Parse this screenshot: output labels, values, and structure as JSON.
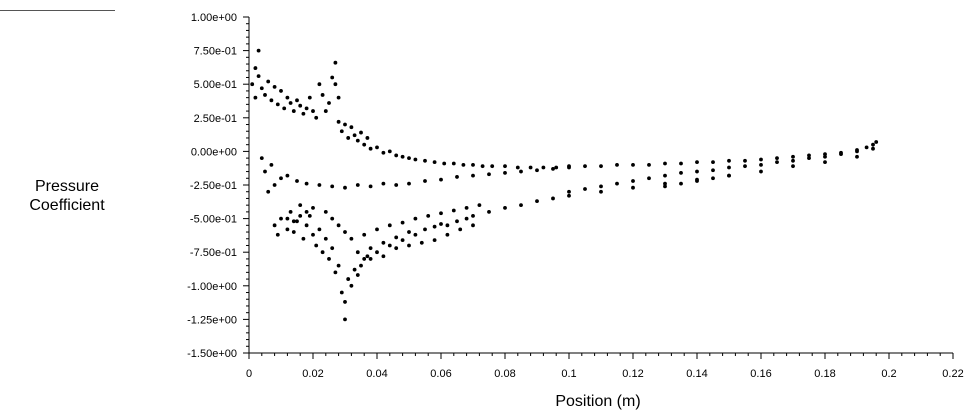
{
  "chart_data": {
    "type": "scatter",
    "title": "",
    "xlabel": "Position (m)",
    "ylabel_lines": [
      "Pressure",
      "Coefficient"
    ],
    "xlim": [
      0,
      0.22
    ],
    "ylim": [
      -1.5,
      1.0
    ],
    "x_tick_labels": [
      "0",
      "0.02",
      "0.04",
      "0.06",
      "0.08",
      "0.1",
      "0.12",
      "0.14",
      "0.16",
      "0.18",
      "0.2",
      "0.22"
    ],
    "y_tick_labels": [
      "1.00e+00",
      "7.50e-01",
      "5.00e-01",
      "2.50e-01",
      "0.00e+00",
      "-2.50e-01",
      "-5.00e-01",
      "-7.50e-01",
      "-1.00e+00",
      "-1.25e+00",
      "-1.50e+00"
    ],
    "series": [
      {
        "marker_color": "#000000",
        "points": [
          [
            0.001,
            0.5
          ],
          [
            0.002,
            0.62
          ],
          [
            0.002,
            0.4
          ],
          [
            0.003,
            0.75
          ],
          [
            0.003,
            0.56
          ],
          [
            0.004,
            0.47
          ],
          [
            0.005,
            0.42
          ],
          [
            0.006,
            0.52
          ],
          [
            0.007,
            0.38
          ],
          [
            0.008,
            0.48
          ],
          [
            0.009,
            0.35
          ],
          [
            0.01,
            0.45
          ],
          [
            0.011,
            0.32
          ],
          [
            0.012,
            0.4
          ],
          [
            0.013,
            0.36
          ],
          [
            0.014,
            0.3
          ],
          [
            0.015,
            0.38
          ],
          [
            0.016,
            0.34
          ],
          [
            0.017,
            0.28
          ],
          [
            0.018,
            0.32
          ],
          [
            0.019,
            0.4
          ],
          [
            0.02,
            0.3
          ],
          [
            0.021,
            0.25
          ],
          [
            0.022,
            0.5
          ],
          [
            0.023,
            0.42
          ],
          [
            0.024,
            0.3
          ],
          [
            0.025,
            0.36
          ],
          [
            0.026,
            0.55
          ],
          [
            0.027,
            0.66
          ],
          [
            0.027,
            0.5
          ],
          [
            0.028,
            0.4
          ],
          [
            0.028,
            0.22
          ],
          [
            0.029,
            0.15
          ],
          [
            0.03,
            0.2
          ],
          [
            0.031,
            0.1
          ],
          [
            0.032,
            0.18
          ],
          [
            0.033,
            0.12
          ],
          [
            0.034,
            0.08
          ],
          [
            0.035,
            0.14
          ],
          [
            0.036,
            0.05
          ],
          [
            0.037,
            0.1
          ],
          [
            0.038,
            0.02
          ],
          [
            0.04,
            0.03
          ],
          [
            0.042,
            -0.01
          ],
          [
            0.044,
            0.0
          ],
          [
            0.046,
            -0.03
          ],
          [
            0.048,
            -0.04
          ],
          [
            0.05,
            -0.05
          ],
          [
            0.052,
            -0.06
          ],
          [
            0.055,
            -0.07
          ],
          [
            0.058,
            -0.08
          ],
          [
            0.061,
            -0.09
          ],
          [
            0.064,
            -0.09
          ],
          [
            0.067,
            -0.1
          ],
          [
            0.07,
            -0.1
          ],
          [
            0.073,
            -0.11
          ],
          [
            0.076,
            -0.11
          ],
          [
            0.08,
            -0.11
          ],
          [
            0.084,
            -0.12
          ],
          [
            0.088,
            -0.12
          ],
          [
            0.092,
            -0.12
          ],
          [
            0.096,
            -0.12
          ],
          [
            0.1,
            -0.11
          ],
          [
            0.105,
            -0.11
          ],
          [
            0.11,
            -0.11
          ],
          [
            0.115,
            -0.1
          ],
          [
            0.12,
            -0.1
          ],
          [
            0.125,
            -0.1
          ],
          [
            0.13,
            -0.09
          ],
          [
            0.135,
            -0.09
          ],
          [
            0.14,
            -0.08
          ],
          [
            0.145,
            -0.08
          ],
          [
            0.15,
            -0.07
          ],
          [
            0.155,
            -0.07
          ],
          [
            0.16,
            -0.06
          ],
          [
            0.165,
            -0.05
          ],
          [
            0.17,
            -0.04
          ],
          [
            0.175,
            -0.03
          ],
          [
            0.18,
            -0.02
          ],
          [
            0.185,
            -0.01
          ],
          [
            0.19,
            0.01
          ],
          [
            0.193,
            0.03
          ],
          [
            0.195,
            0.05
          ],
          [
            0.196,
            0.07
          ],
          [
            0.004,
            -0.05
          ],
          [
            0.005,
            -0.15
          ],
          [
            0.006,
            -0.3
          ],
          [
            0.007,
            -0.1
          ],
          [
            0.008,
            -0.25
          ],
          [
            0.01,
            -0.2
          ],
          [
            0.012,
            -0.18
          ],
          [
            0.015,
            -0.22
          ],
          [
            0.018,
            -0.24
          ],
          [
            0.022,
            -0.25
          ],
          [
            0.026,
            -0.26
          ],
          [
            0.03,
            -0.27
          ],
          [
            0.034,
            -0.25
          ],
          [
            0.038,
            -0.26
          ],
          [
            0.042,
            -0.24
          ],
          [
            0.046,
            -0.25
          ],
          [
            0.05,
            -0.24
          ],
          [
            0.055,
            -0.22
          ],
          [
            0.06,
            -0.21
          ],
          [
            0.065,
            -0.19
          ],
          [
            0.07,
            -0.18
          ],
          [
            0.075,
            -0.17
          ],
          [
            0.08,
            -0.16
          ],
          [
            0.085,
            -0.15
          ],
          [
            0.09,
            -0.14
          ],
          [
            0.095,
            -0.13
          ],
          [
            0.1,
            -0.12
          ],
          [
            0.1,
            -0.3
          ],
          [
            0.105,
            -0.28
          ],
          [
            0.11,
            -0.26
          ],
          [
            0.115,
            -0.24
          ],
          [
            0.12,
            -0.22
          ],
          [
            0.125,
            -0.2
          ],
          [
            0.13,
            -0.18
          ],
          [
            0.135,
            -0.16
          ],
          [
            0.14,
            -0.15
          ],
          [
            0.145,
            -0.14
          ],
          [
            0.15,
            -0.12
          ],
          [
            0.155,
            -0.11
          ],
          [
            0.16,
            -0.1
          ],
          [
            0.165,
            -0.08
          ],
          [
            0.17,
            -0.07
          ],
          [
            0.175,
            -0.05
          ],
          [
            0.18,
            -0.04
          ],
          [
            0.185,
            -0.02
          ],
          [
            0.19,
            0.0
          ],
          [
            0.195,
            0.02
          ],
          [
            0.14,
            -0.22
          ],
          [
            0.145,
            -0.2
          ],
          [
            0.135,
            -0.24
          ],
          [
            0.15,
            -0.18
          ],
          [
            0.13,
            -0.26
          ],
          [
            0.008,
            -0.55
          ],
          [
            0.009,
            -0.62
          ],
          [
            0.01,
            -0.5
          ],
          [
            0.012,
            -0.58
          ],
          [
            0.013,
            -0.45
          ],
          [
            0.014,
            -0.6
          ],
          [
            0.015,
            -0.52
          ],
          [
            0.016,
            -0.4
          ],
          [
            0.017,
            -0.65
          ],
          [
            0.018,
            -0.55
          ],
          [
            0.019,
            -0.48
          ],
          [
            0.02,
            -0.62
          ],
          [
            0.021,
            -0.7
          ],
          [
            0.022,
            -0.58
          ],
          [
            0.023,
            -0.75
          ],
          [
            0.024,
            -0.65
          ],
          [
            0.025,
            -0.8
          ],
          [
            0.026,
            -0.72
          ],
          [
            0.027,
            -0.9
          ],
          [
            0.028,
            -0.85
          ],
          [
            0.029,
            -1.05
          ],
          [
            0.03,
            -1.12
          ],
          [
            0.03,
            -1.25
          ],
          [
            0.031,
            -0.95
          ],
          [
            0.032,
            -1.0
          ],
          [
            0.033,
            -0.88
          ],
          [
            0.034,
            -0.92
          ],
          [
            0.035,
            -0.85
          ],
          [
            0.036,
            -0.8
          ],
          [
            0.037,
            -0.78
          ],
          [
            0.038,
            -0.72
          ],
          [
            0.04,
            -0.75
          ],
          [
            0.042,
            -0.68
          ],
          [
            0.044,
            -0.7
          ],
          [
            0.046,
            -0.64
          ],
          [
            0.048,
            -0.66
          ],
          [
            0.05,
            -0.6
          ],
          [
            0.052,
            -0.62
          ],
          [
            0.055,
            -0.58
          ],
          [
            0.058,
            -0.56
          ],
          [
            0.06,
            -0.54
          ],
          [
            0.062,
            -0.55
          ],
          [
            0.065,
            -0.52
          ],
          [
            0.068,
            -0.5
          ],
          [
            0.07,
            -0.48
          ],
          [
            0.075,
            -0.45
          ],
          [
            0.08,
            -0.42
          ],
          [
            0.085,
            -0.4
          ],
          [
            0.09,
            -0.37
          ],
          [
            0.095,
            -0.35
          ],
          [
            0.1,
            -0.33
          ],
          [
            0.11,
            -0.3
          ],
          [
            0.12,
            -0.27
          ],
          [
            0.13,
            -0.24
          ],
          [
            0.14,
            -0.21
          ],
          [
            0.15,
            -0.18
          ],
          [
            0.16,
            -0.15
          ],
          [
            0.17,
            -0.11
          ],
          [
            0.18,
            -0.08
          ],
          [
            0.19,
            -0.04
          ],
          [
            0.036,
            -0.62
          ],
          [
            0.04,
            -0.58
          ],
          [
            0.044,
            -0.55
          ],
          [
            0.048,
            -0.53
          ],
          [
            0.052,
            -0.5
          ],
          [
            0.056,
            -0.48
          ],
          [
            0.06,
            -0.46
          ],
          [
            0.064,
            -0.44
          ],
          [
            0.068,
            -0.42
          ],
          [
            0.072,
            -0.4
          ],
          [
            0.034,
            -0.75
          ],
          [
            0.038,
            -0.8
          ],
          [
            0.042,
            -0.78
          ],
          [
            0.046,
            -0.72
          ],
          [
            0.05,
            -0.7
          ],
          [
            0.054,
            -0.68
          ],
          [
            0.058,
            -0.66
          ],
          [
            0.062,
            -0.62
          ],
          [
            0.066,
            -0.58
          ],
          [
            0.07,
            -0.55
          ],
          [
            0.024,
            -0.45
          ],
          [
            0.026,
            -0.5
          ],
          [
            0.028,
            -0.55
          ],
          [
            0.03,
            -0.6
          ],
          [
            0.032,
            -0.65
          ],
          [
            0.02,
            -0.42
          ],
          [
            0.018,
            -0.45
          ],
          [
            0.016,
            -0.48
          ],
          [
            0.014,
            -0.52
          ],
          [
            0.012,
            -0.5
          ]
        ]
      }
    ]
  }
}
